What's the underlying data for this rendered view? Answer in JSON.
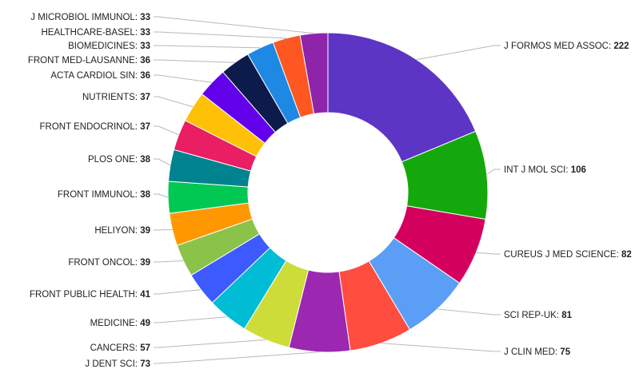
{
  "chart_data": {
    "type": "pie",
    "variant": "donut",
    "title": "",
    "start_angle_deg": 0,
    "direction": "clockwise",
    "legend": "none",
    "slices": [
      {
        "label": "J FORMOS MED ASSOC",
        "value": 222,
        "color": "#5c35c4"
      },
      {
        "label": "INT J MOL SCI",
        "value": 106,
        "color": "#13a80b"
      },
      {
        "label": "CUREUS J MED SCIENCE",
        "value": 82,
        "color": "#d4005e"
      },
      {
        "label": "SCI REP-UK",
        "value": 81,
        "color": "#5b9ef5"
      },
      {
        "label": "J CLIN MED",
        "value": 75,
        "color": "#ff4d40"
      },
      {
        "label": "J DENT SCI",
        "value": 73,
        "color": "#9c27b0"
      },
      {
        "label": "CANCERS",
        "value": 57,
        "color": "#cddc39"
      },
      {
        "label": "MEDICINE",
        "value": 49,
        "color": "#00bcd4"
      },
      {
        "label": "FRONT PUBLIC HEALTH",
        "value": 41,
        "color": "#3d5afe"
      },
      {
        "label": "FRONT ONCOL",
        "value": 39,
        "color": "#8bc34a"
      },
      {
        "label": "HELIYON",
        "value": 39,
        "color": "#ff9800"
      },
      {
        "label": "FRONT IMMUNOL",
        "value": 38,
        "color": "#00c853"
      },
      {
        "label": "PLOS ONE",
        "value": 38,
        "color": "#00838f"
      },
      {
        "label": "FRONT ENDOCRINOL",
        "value": 37,
        "color": "#e91e63"
      },
      {
        "label": "NUTRIENTS",
        "value": 37,
        "color": "#ffc107"
      },
      {
        "label": "ACTA CARDIOL SIN",
        "value": 36,
        "color": "#6200ea"
      },
      {
        "label": "FRONT MED-LAUSANNE",
        "value": 36,
        "color": "#0d1b4c"
      },
      {
        "label": "BIOMEDICINES",
        "value": 33,
        "color": "#1e88e5"
      },
      {
        "label": "HEALTHCARE-BASEL",
        "value": 33,
        "color": "#ff5722"
      },
      {
        "label": "J MICROBIOL IMMUNOL",
        "value": 33,
        "color": "#8e24aa"
      }
    ]
  }
}
